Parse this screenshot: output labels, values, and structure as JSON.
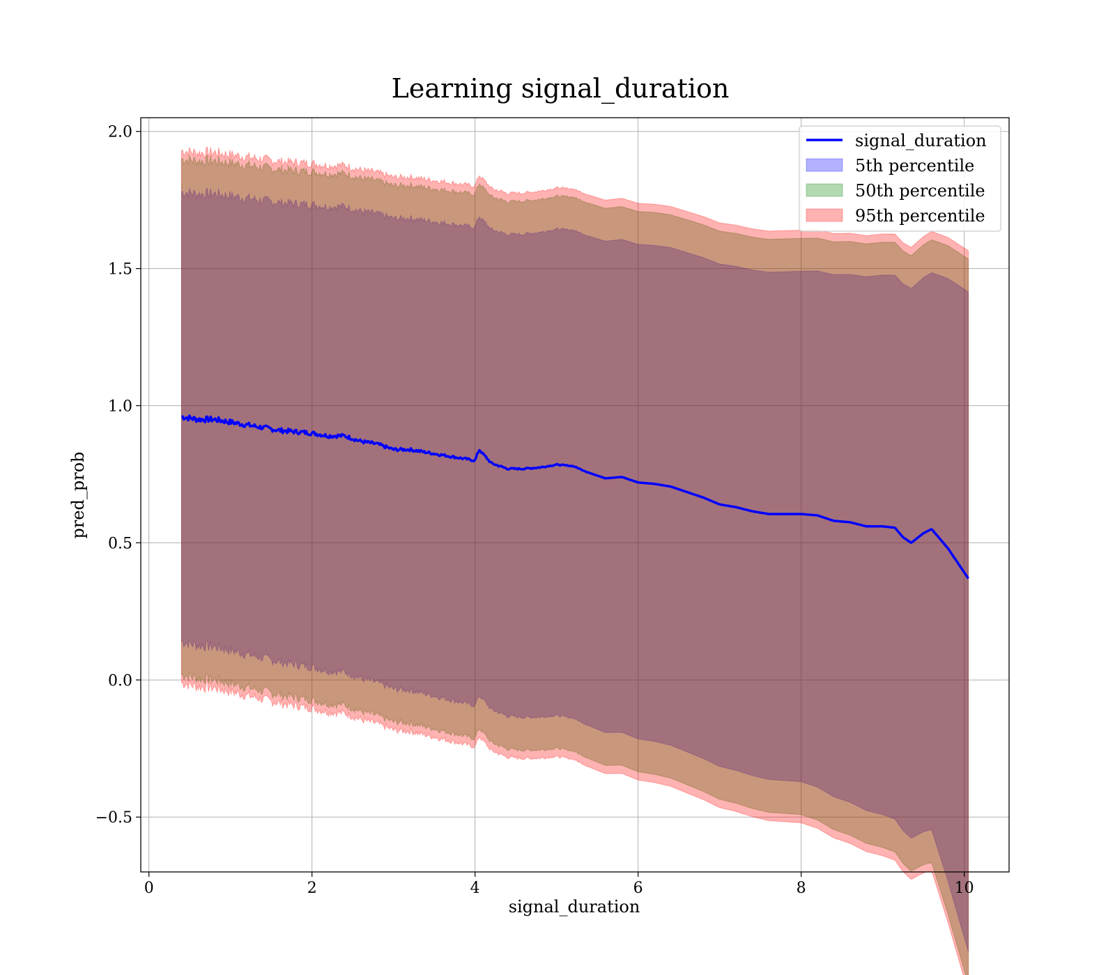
{
  "chart_data": {
    "type": "area",
    "title": "Learning signal_duration",
    "xlabel": "signal_duration",
    "ylabel": "pred_prob",
    "xlim": [
      -0.1,
      10.55
    ],
    "ylim": [
      -0.7,
      2.05
    ],
    "xticks": [
      0,
      2,
      4,
      6,
      8,
      10
    ],
    "xtick_labels": [
      "0",
      "2",
      "4",
      "6",
      "8",
      "10"
    ],
    "yticks": [
      -0.5,
      0.0,
      0.5,
      1.0,
      1.5,
      2.0
    ],
    "ytick_labels": [
      "−0.5",
      "0.0",
      "0.5",
      "1.0",
      "1.5",
      "2.0"
    ],
    "grid": true,
    "legend_position": "top-right",
    "colors": {
      "line": "#0000ff",
      "band_5": "#0000ff",
      "band_50": "#008000",
      "band_95": "#ff0000"
    },
    "line": {
      "name": "signal_duration",
      "x": [
        0.4,
        0.6,
        0.8,
        1.0,
        1.2,
        1.4,
        1.6,
        1.8,
        2.0,
        2.2,
        2.4,
        2.6,
        2.8,
        3.0,
        3.2,
        3.4,
        3.6,
        3.8,
        4.0,
        4.05,
        4.2,
        4.4,
        4.6,
        4.8,
        5.0,
        5.2,
        5.4,
        5.6,
        5.8,
        6.0,
        6.2,
        6.4,
        6.6,
        6.8,
        7.0,
        7.2,
        7.4,
        7.6,
        7.8,
        8.0,
        8.2,
        8.4,
        8.6,
        8.8,
        9.0,
        9.15,
        9.25,
        9.35,
        9.5,
        9.6,
        9.8,
        10.05
      ],
      "y": [
        0.96,
        0.95,
        0.95,
        0.94,
        0.93,
        0.92,
        0.91,
        0.905,
        0.9,
        0.89,
        0.89,
        0.87,
        0.86,
        0.84,
        0.84,
        0.83,
        0.82,
        0.81,
        0.8,
        0.84,
        0.79,
        0.77,
        0.77,
        0.775,
        0.785,
        0.78,
        0.755,
        0.735,
        0.74,
        0.72,
        0.715,
        0.705,
        0.685,
        0.665,
        0.64,
        0.63,
        0.615,
        0.605,
        0.605,
        0.605,
        0.6,
        0.58,
        0.575,
        0.56,
        0.56,
        0.555,
        0.52,
        0.5,
        0.535,
        0.55,
        0.48,
        0.37
      ]
    },
    "bands": [
      {
        "name": "5th percentile",
        "lower_offset": -0.82,
        "upper_offset": 0.82
      },
      {
        "name": "50th percentile",
        "lower_offset": -0.94,
        "upper_offset": 0.94
      },
      {
        "name": "95th percentile",
        "lower_offset": -0.97,
        "upper_offset": 0.97
      }
    ],
    "band_growth": {
      "x": [
        0.4,
        8.0,
        9.6,
        10.05
      ],
      "extra": [
        0.0,
        0.13,
        0.23,
        0.45
      ]
    },
    "legend": [
      "signal_duration",
      "5th percentile",
      "50th percentile",
      "95th percentile"
    ]
  }
}
